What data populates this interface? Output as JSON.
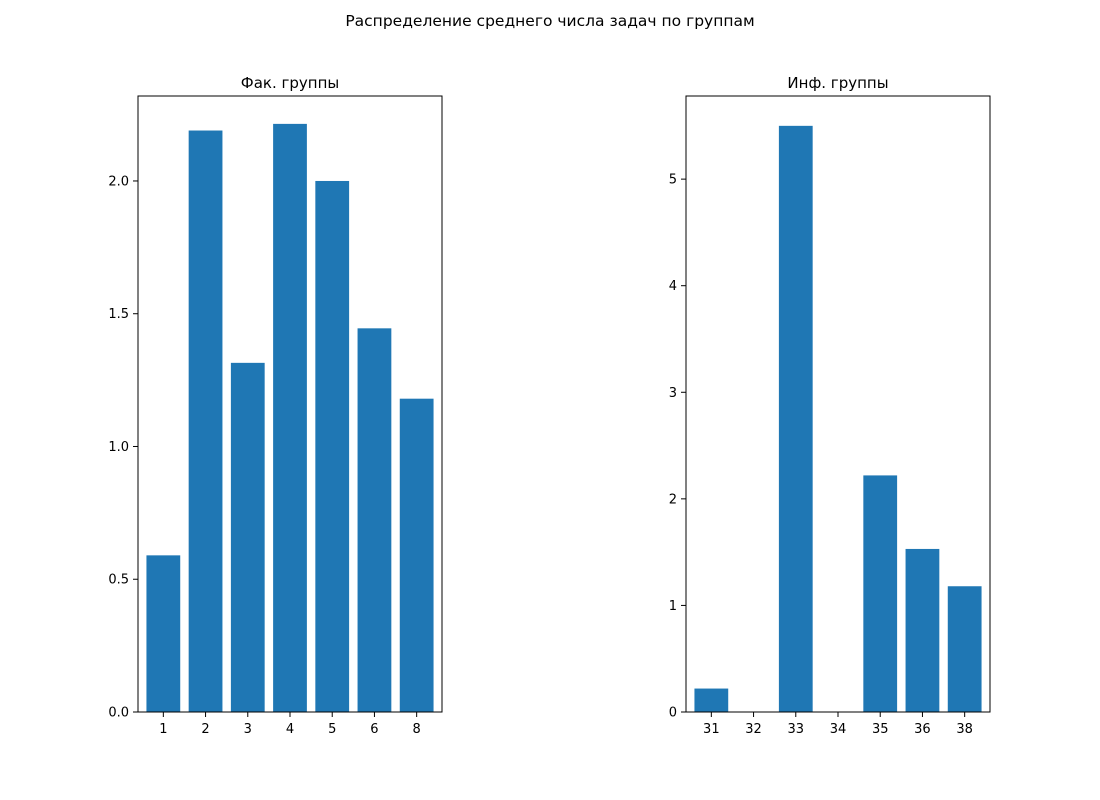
{
  "figure": {
    "suptitle": "Распределение среднего числа задач по группам"
  },
  "chart_data": [
    {
      "type": "bar",
      "title": "Фак. группы",
      "xlabel": "",
      "ylabel": "",
      "categories": [
        "1",
        "2",
        "3",
        "4",
        "5",
        "6",
        "8"
      ],
      "values": [
        0.59,
        2.19,
        1.315,
        2.215,
        2.0,
        1.445,
        1.18
      ],
      "ylim": [
        0,
        2.32
      ],
      "yticks": [
        0.0,
        0.5,
        1.0,
        1.5,
        2.0
      ],
      "ytick_labels": [
        "0.0",
        "0.5",
        "1.0",
        "1.5",
        "2.0"
      ],
      "grid": false,
      "bar_color": "#1f77b4"
    },
    {
      "type": "bar",
      "title": "Инф. группы",
      "xlabel": "",
      "ylabel": "",
      "categories": [
        "31",
        "32",
        "33",
        "34",
        "35",
        "36",
        "38"
      ],
      "values": [
        0.22,
        0,
        5.5,
        0,
        2.22,
        1.53,
        1.18
      ],
      "ylim": [
        0,
        5.78
      ],
      "yticks": [
        0,
        1,
        2,
        3,
        4,
        5
      ],
      "ytick_labels": [
        "0",
        "1",
        "2",
        "3",
        "4",
        "5"
      ],
      "grid": false,
      "bar_color": "#1f77b4"
    }
  ]
}
